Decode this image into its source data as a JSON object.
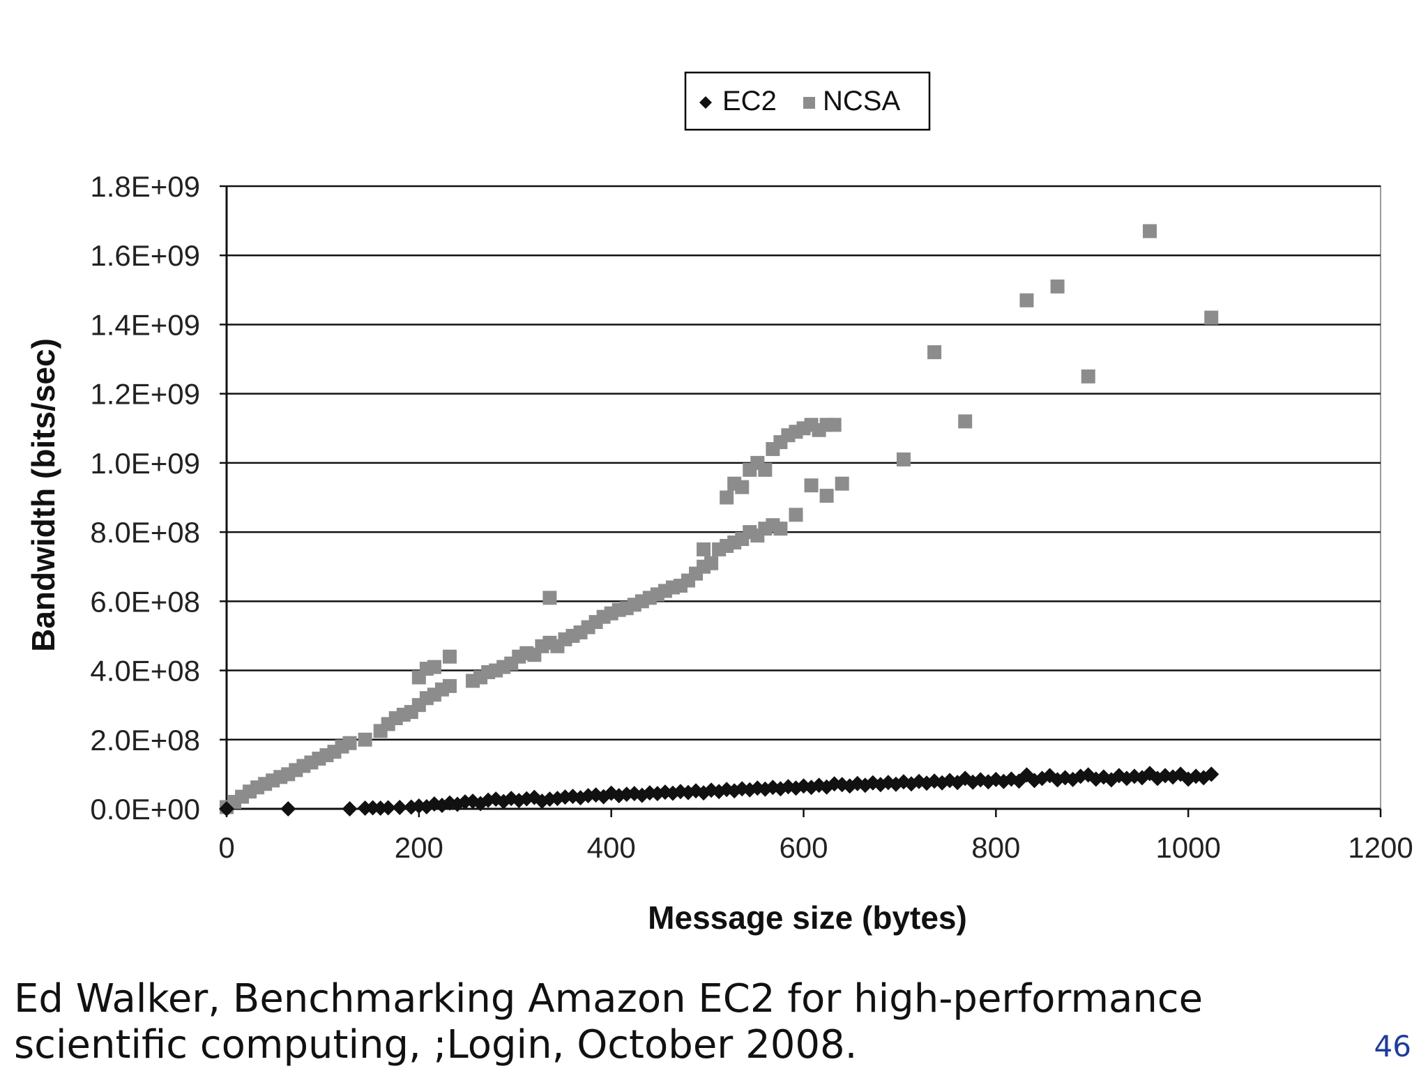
{
  "chart_data": {
    "type": "scatter",
    "xlabel": "Message size (bytes)",
    "ylabel": "Bandwidth (bits/sec)",
    "xlim": [
      0,
      1200
    ],
    "ylim": [
      0,
      1800000000
    ],
    "x_ticks": [
      "0",
      "200",
      "400",
      "600",
      "800",
      "1000",
      "1200"
    ],
    "y_ticks": [
      "0.0E+00",
      "2.0E+08",
      "4.0E+08",
      "6.0E+08",
      "8.0E+08",
      "1.0E+09",
      "1.2E+09",
      "1.4E+09",
      "1.6E+09",
      "1.8E+09"
    ],
    "grid": "horizontal",
    "legend_position": "top-center",
    "series": [
      {
        "name": "EC2",
        "marker": "diamond",
        "color": "#111111",
        "points": [
          [
            0,
            0
          ],
          [
            64,
            0
          ],
          [
            128,
            0
          ],
          [
            144,
            2000000
          ],
          [
            152,
            3000000
          ],
          [
            160,
            2000000
          ],
          [
            168,
            3000000
          ],
          [
            180,
            4000000
          ],
          [
            192,
            5000000
          ],
          [
            200,
            8000000
          ],
          [
            208,
            6000000
          ],
          [
            216,
            14000000
          ],
          [
            224,
            10000000
          ],
          [
            232,
            17000000
          ],
          [
            240,
            13000000
          ],
          [
            248,
            20000000
          ],
          [
            256,
            22000000
          ],
          [
            264,
            15000000
          ],
          [
            272,
            25000000
          ],
          [
            280,
            28000000
          ],
          [
            288,
            21000000
          ],
          [
            296,
            30000000
          ],
          [
            304,
            24000000
          ],
          [
            312,
            29000000
          ],
          [
            320,
            33000000
          ],
          [
            328,
            22000000
          ],
          [
            336,
            28000000
          ],
          [
            344,
            30000000
          ],
          [
            352,
            34000000
          ],
          [
            360,
            36000000
          ],
          [
            368,
            32000000
          ],
          [
            376,
            38000000
          ],
          [
            384,
            40000000
          ],
          [
            392,
            35000000
          ],
          [
            400,
            45000000
          ],
          [
            408,
            38000000
          ],
          [
            416,
            42000000
          ],
          [
            424,
            44000000
          ],
          [
            432,
            39000000
          ],
          [
            440,
            46000000
          ],
          [
            448,
            44000000
          ],
          [
            456,
            48000000
          ],
          [
            464,
            45000000
          ],
          [
            472,
            50000000
          ],
          [
            480,
            47000000
          ],
          [
            488,
            52000000
          ],
          [
            496,
            46000000
          ],
          [
            504,
            54000000
          ],
          [
            512,
            50000000
          ],
          [
            520,
            56000000
          ],
          [
            528,
            52000000
          ],
          [
            536,
            58000000
          ],
          [
            544,
            55000000
          ],
          [
            552,
            60000000
          ],
          [
            560,
            57000000
          ],
          [
            568,
            62000000
          ],
          [
            576,
            58000000
          ],
          [
            584,
            64000000
          ],
          [
            592,
            60000000
          ],
          [
            600,
            66000000
          ],
          [
            608,
            62000000
          ],
          [
            616,
            68000000
          ],
          [
            624,
            63000000
          ],
          [
            632,
            72000000
          ],
          [
            640,
            70000000
          ],
          [
            648,
            66000000
          ],
          [
            656,
            73000000
          ],
          [
            664,
            68000000
          ],
          [
            672,
            75000000
          ],
          [
            680,
            70000000
          ],
          [
            688,
            76000000
          ],
          [
            696,
            71000000
          ],
          [
            704,
            78000000
          ],
          [
            712,
            72000000
          ],
          [
            720,
            79000000
          ],
          [
            728,
            74000000
          ],
          [
            736,
            80000000
          ],
          [
            744,
            75000000
          ],
          [
            752,
            82000000
          ],
          [
            760,
            76000000
          ],
          [
            768,
            88000000
          ],
          [
            776,
            77000000
          ],
          [
            784,
            84000000
          ],
          [
            792,
            78000000
          ],
          [
            800,
            85000000
          ],
          [
            808,
            79000000
          ],
          [
            816,
            86000000
          ],
          [
            824,
            80000000
          ],
          [
            832,
            98000000
          ],
          [
            840,
            82000000
          ],
          [
            848,
            88000000
          ],
          [
            856,
            96000000
          ],
          [
            864,
            84000000
          ],
          [
            872,
            90000000
          ],
          [
            880,
            85000000
          ],
          [
            888,
            94000000
          ],
          [
            896,
            98000000
          ],
          [
            904,
            86000000
          ],
          [
            912,
            92000000
          ],
          [
            920,
            84000000
          ],
          [
            928,
            96000000
          ],
          [
            936,
            88000000
          ],
          [
            944,
            94000000
          ],
          [
            952,
            90000000
          ],
          [
            960,
            102000000
          ],
          [
            968,
            88000000
          ],
          [
            976,
            96000000
          ],
          [
            984,
            92000000
          ],
          [
            992,
            100000000
          ],
          [
            1000,
            86000000
          ],
          [
            1008,
            94000000
          ],
          [
            1016,
            90000000
          ],
          [
            1024,
            100000000
          ]
        ]
      },
      {
        "name": "NCSA",
        "marker": "square",
        "color": "#8c8c8c",
        "points": [
          [
            0,
            5000000
          ],
          [
            8,
            20000000
          ],
          [
            16,
            35000000
          ],
          [
            24,
            50000000
          ],
          [
            32,
            62000000
          ],
          [
            40,
            72000000
          ],
          [
            48,
            82000000
          ],
          [
            56,
            92000000
          ],
          [
            64,
            100000000
          ],
          [
            72,
            112000000
          ],
          [
            80,
            124000000
          ],
          [
            88,
            134000000
          ],
          [
            96,
            145000000
          ],
          [
            104,
            155000000
          ],
          [
            112,
            165000000
          ],
          [
            120,
            180000000
          ],
          [
            128,
            190000000
          ],
          [
            144,
            200000000
          ],
          [
            160,
            225000000
          ],
          [
            168,
            245000000
          ],
          [
            176,
            262000000
          ],
          [
            184,
            272000000
          ],
          [
            192,
            280000000
          ],
          [
            200,
            300000000
          ],
          [
            208,
            320000000
          ],
          [
            216,
            330000000
          ],
          [
            224,
            345000000
          ],
          [
            232,
            355000000
          ],
          [
            200,
            380000000
          ],
          [
            208,
            405000000
          ],
          [
            216,
            410000000
          ],
          [
            232,
            440000000
          ],
          [
            256,
            370000000
          ],
          [
            264,
            380000000
          ],
          [
            272,
            395000000
          ],
          [
            280,
            400000000
          ],
          [
            288,
            410000000
          ],
          [
            296,
            420000000
          ],
          [
            304,
            440000000
          ],
          [
            312,
            450000000
          ],
          [
            320,
            445000000
          ],
          [
            328,
            470000000
          ],
          [
            336,
            480000000
          ],
          [
            344,
            470000000
          ],
          [
            336,
            610000000
          ],
          [
            352,
            490000000
          ],
          [
            360,
            500000000
          ],
          [
            368,
            510000000
          ],
          [
            376,
            525000000
          ],
          [
            384,
            540000000
          ],
          [
            392,
            555000000
          ],
          [
            400,
            565000000
          ],
          [
            408,
            575000000
          ],
          [
            416,
            580000000
          ],
          [
            424,
            590000000
          ],
          [
            432,
            600000000
          ],
          [
            440,
            610000000
          ],
          [
            448,
            620000000
          ],
          [
            456,
            630000000
          ],
          [
            464,
            640000000
          ],
          [
            472,
            645000000
          ],
          [
            480,
            660000000
          ],
          [
            488,
            680000000
          ],
          [
            496,
            700000000
          ],
          [
            504,
            710000000
          ],
          [
            496,
            750000000
          ],
          [
            512,
            750000000
          ],
          [
            520,
            760000000
          ],
          [
            528,
            770000000
          ],
          [
            536,
            780000000
          ],
          [
            544,
            800000000
          ],
          [
            552,
            790000000
          ],
          [
            560,
            810000000
          ],
          [
            568,
            820000000
          ],
          [
            576,
            810000000
          ],
          [
            592,
            850000000
          ],
          [
            520,
            900000000
          ],
          [
            528,
            940000000
          ],
          [
            536,
            930000000
          ],
          [
            544,
            980000000
          ],
          [
            552,
            1000000000
          ],
          [
            560,
            980000000
          ],
          [
            568,
            1040000000
          ],
          [
            576,
            1060000000
          ],
          [
            584,
            1080000000
          ],
          [
            592,
            1090000000
          ],
          [
            600,
            1100000000
          ],
          [
            608,
            1110000000
          ],
          [
            616,
            1095000000
          ],
          [
            624,
            1110000000
          ],
          [
            632,
            1110000000
          ],
          [
            608,
            935000000
          ],
          [
            624,
            905000000
          ],
          [
            640,
            940000000
          ],
          [
            704,
            1010000000
          ],
          [
            736,
            1320000000
          ],
          [
            768,
            1120000000
          ],
          [
            832,
            1470000000
          ],
          [
            864,
            1510000000
          ],
          [
            896,
            1250000000
          ],
          [
            960,
            1670000000
          ],
          [
            1024,
            1420000000
          ]
        ]
      }
    ]
  },
  "caption": {
    "line1": "Ed Walker, Benchmarking Amazon EC2 for high-performance",
    "line2": "scientific computing, ;Login, October 2008."
  },
  "page_number": "46"
}
